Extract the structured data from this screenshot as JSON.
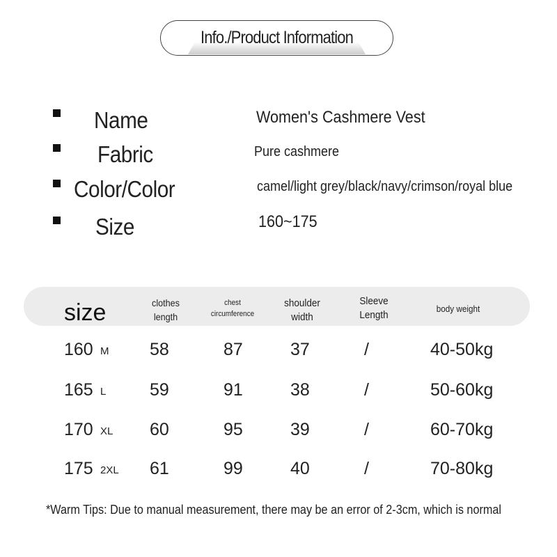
{
  "header": {
    "title": "Info./Product Information"
  },
  "info": [
    {
      "label": "Name",
      "value": "Women's Cashmere Vest"
    },
    {
      "label": "Fabric",
      "value": "Pure cashmere"
    },
    {
      "label": "Color/Color",
      "value": "camel/light grey/black/navy/crimson/royal blue"
    },
    {
      "label": "Size",
      "value": "160~175"
    }
  ],
  "table": {
    "headers": {
      "size": "size",
      "length_1": "clothes",
      "length_2": "length",
      "chest_1": "chest",
      "chest_2": "circumference",
      "shoulder_1": "shoulder",
      "shoulder_2": "width",
      "sleeve_1": "Sleeve",
      "sleeve_2": "Length",
      "weight": "body weight"
    },
    "rows": [
      {
        "height": "160",
        "size": "M",
        "length": "58",
        "chest": "87",
        "shoulder": "37",
        "sleeve": "/",
        "weight": "40-50kg"
      },
      {
        "height": "165",
        "size": "L",
        "length": "59",
        "chest": "91",
        "shoulder": "38",
        "sleeve": "/",
        "weight": "50-60kg"
      },
      {
        "height": "170",
        "size": "XL",
        "length": "60",
        "chest": "95",
        "shoulder": "39",
        "sleeve": "/",
        "weight": "60-70kg"
      },
      {
        "height": "175",
        "size": "2XL",
        "length": "61",
        "chest": "99",
        "shoulder": "40",
        "sleeve": "/",
        "weight": "70-80kg"
      }
    ]
  },
  "footer": {
    "tips": "*Warm Tips: Due to manual measurement, there may be an error of 2-3cm, which is normal"
  }
}
